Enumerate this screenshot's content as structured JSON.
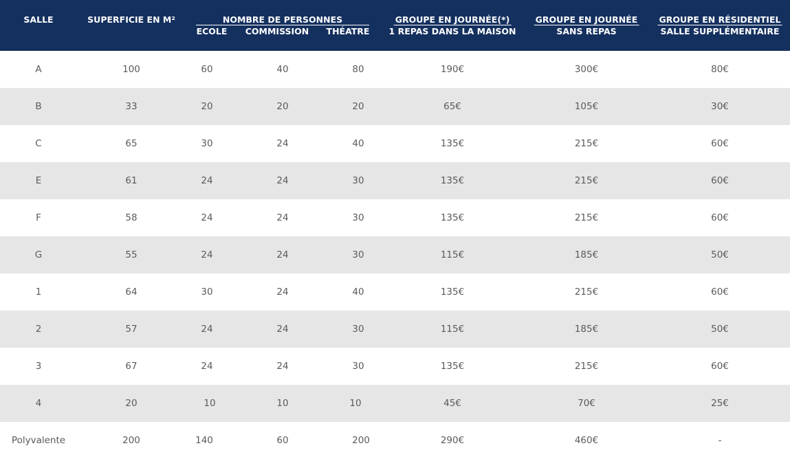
{
  "header": {
    "salle": "SALLE",
    "superficie": "SUPERFICIE EN M²",
    "nombre": "NOMBRE DE PERSONNES",
    "ecole": "ECOLE",
    "commission": "COMMISSION",
    "theatre": "THÉATRE",
    "groupe_journee_repas_1": "GROUPE EN JOURNÉE(*)",
    "groupe_journee_repas_2": "1 REPAS DANS LA MAISON",
    "groupe_journee_sans_1": "GROUPE EN JOURNÉE",
    "groupe_journee_sans_2": "SANS REPAS",
    "groupe_residentiel_1": "GROUPE EN RÉSIDENTIEL",
    "groupe_residentiel_2": "SALLE SUPPLÉMENTAIRE"
  },
  "rows": [
    {
      "salle": "A",
      "superficie": "100",
      "ecole": "60",
      "commission": "40",
      "theatre": "80",
      "journee_repas": "190€",
      "journee_sans": "300€",
      "residentiel": "80€"
    },
    {
      "salle": "B",
      "superficie": "33",
      "ecole": "20",
      "commission": "20",
      "theatre": "20",
      "journee_repas": "65€",
      "journee_sans": "105€",
      "residentiel": "30€"
    },
    {
      "salle": "C",
      "superficie": "65",
      "ecole": "30",
      "commission": "24",
      "theatre": "40",
      "journee_repas": "135€",
      "journee_sans": "215€",
      "residentiel": "60€"
    },
    {
      "salle": "E",
      "superficie": "61",
      "ecole": "24",
      "commission": "24",
      "theatre": "30",
      "journee_repas": "135€",
      "journee_sans": "215€",
      "residentiel": "60€"
    },
    {
      "salle": "F",
      "superficie": "58",
      "ecole": "24",
      "commission": "24",
      "theatre": "30",
      "journee_repas": "135€",
      "journee_sans": "215€",
      "residentiel": "60€"
    },
    {
      "salle": "G",
      "superficie": "55",
      "ecole": "24",
      "commission": "24",
      "theatre": "30",
      "journee_repas": "115€",
      "journee_sans": "185€",
      "residentiel": "50€"
    },
    {
      "salle": "1",
      "superficie": "64",
      "ecole": "30",
      "commission": "24",
      "theatre": "40",
      "journee_repas": "135€",
      "journee_sans": "215€",
      "residentiel": "60€"
    },
    {
      "salle": "2",
      "superficie": "57",
      "ecole": "24",
      "commission": "24",
      "theatre": "30",
      "journee_repas": "115€",
      "journee_sans": "185€",
      "residentiel": "50€"
    },
    {
      "salle": "3",
      "superficie": "67",
      "ecole": "24",
      "commission": "24",
      "theatre": "30",
      "journee_repas": "135€",
      "journee_sans": "215€",
      "residentiel": "60€"
    },
    {
      "salle": "4",
      "superficie": "20",
      "ecole": "10",
      "commission": "10",
      "theatre": "10",
      "journee_repas": "45€",
      "journee_sans": "70€",
      "residentiel": "25€"
    },
    {
      "salle": "Polyvalente",
      "superficie": "200",
      "ecole": "140",
      "commission": "60",
      "theatre": "200",
      "journee_repas": "290€",
      "journee_sans": "460€",
      "residentiel": "-"
    }
  ],
  "colors": {
    "header_bg": "#14305f",
    "header_text": "#ffffff",
    "row_alt_bg": "#e6e6e6",
    "cell_text": "#5a5a5a"
  }
}
